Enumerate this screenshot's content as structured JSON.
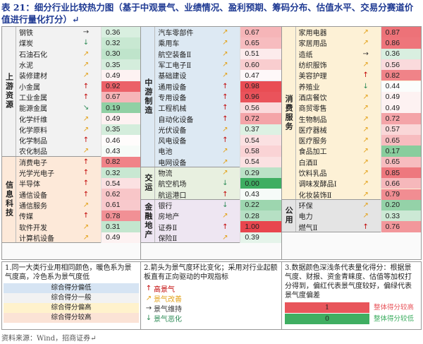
{
  "title": "表 21：细分行业比较热力图（基于中观景气、业绩情况、盈利预期、筹码分布、估值水平、交易分赛道价值进行量化打分）↵",
  "columns": [
    {
      "sections": [
        {
          "sector": "上游资源",
          "rows": [
            {
              "name": "钢铁",
              "arrow": "→",
              "value": "0.36"
            },
            {
              "name": "煤炭",
              "arrow": "↓",
              "value": "0.32"
            },
            {
              "name": "石油石化",
              "arrow": "↗",
              "value": "0.30"
            },
            {
              "name": "水泥",
              "arrow": "↗",
              "value": "0.35"
            },
            {
              "name": "装修建材",
              "arrow": "↗",
              "value": "0.49"
            },
            {
              "name": "小金属",
              "arrow": "↑",
              "value": "0.92"
            },
            {
              "name": "工业金属",
              "arrow": "↑",
              "value": "0.67"
            },
            {
              "name": "能源金属",
              "arrow": "↘",
              "value": "0.19"
            },
            {
              "name": "化学纤维",
              "arrow": "↗",
              "value": "0.49"
            },
            {
              "name": "化学原料",
              "arrow": "↗",
              "value": "0.35"
            },
            {
              "name": "化学制品",
              "arrow": "↑",
              "value": "0.46"
            },
            {
              "name": "农化制品",
              "arrow": "↗",
              "value": "0.43"
            }
          ]
        },
        {
          "sector": "信息科技",
          "rows": [
            {
              "name": "消费电子",
              "arrow": "↑",
              "value": "0.82"
            },
            {
              "name": "光学光电子",
              "arrow": "↑",
              "value": "0.32"
            },
            {
              "name": "半导体",
              "arrow": "↑",
              "value": "0.54"
            },
            {
              "name": "通信设备",
              "arrow": "↑",
              "value": "0.62"
            },
            {
              "name": "通信服务",
              "arrow": "↗",
              "value": "0.61"
            },
            {
              "name": "传媒",
              "arrow": "↑",
              "value": "0.78"
            },
            {
              "name": "软件开发",
              "arrow": "↗",
              "value": "0.31"
            },
            {
              "name": "计算机设备",
              "arrow": "↗",
              "value": "0.49"
            }
          ]
        }
      ]
    },
    {
      "sections": [
        {
          "sector": "中游制造",
          "rows": [
            {
              "name": "汽车零部件",
              "arrow": "↗",
              "value": "0.67"
            },
            {
              "name": "乘用车",
              "arrow": "↗",
              "value": "0.65"
            },
            {
              "name": "航空装备Ⅱ",
              "arrow": "↗",
              "value": "0.51"
            },
            {
              "name": "军工电子Ⅱ",
              "arrow": "↗",
              "value": "0.60"
            },
            {
              "name": "基础建设",
              "arrow": "↗",
              "value": "0.47"
            },
            {
              "name": "通用设备",
              "arrow": "↑",
              "value": "0.98"
            },
            {
              "name": "专用设备",
              "arrow": "↑",
              "value": "0.96"
            },
            {
              "name": "工程机械",
              "arrow": "↑",
              "value": "0.56"
            },
            {
              "name": "自动化设备",
              "arrow": "↑",
              "value": "0.72"
            },
            {
              "name": "光伏设备",
              "arrow": "↗",
              "value": "0.37"
            },
            {
              "name": "风电设备",
              "arrow": "↑",
              "value": "0.54"
            },
            {
              "name": "电池",
              "arrow": "↗",
              "value": "0.58"
            },
            {
              "name": "电网设备",
              "arrow": "↗",
              "value": "0.54"
            }
          ]
        },
        {
          "sector": "交运",
          "rows": [
            {
              "name": "物流",
              "arrow": "↗",
              "value": "0.29"
            },
            {
              "name": "航空机场",
              "arrow": "↓",
              "value": "0.00"
            },
            {
              "name": "航运港口",
              "arrow": "↑",
              "value": "0.43"
            }
          ]
        },
        {
          "sector": "金融地产",
          "rows": [
            {
              "name": "银行",
              "arrow": "↓",
              "value": "0.22"
            },
            {
              "name": "房地产",
              "arrow": "↗",
              "value": "0.28"
            },
            {
              "name": "证券Ⅱ",
              "arrow": "↑",
              "value": "1.00"
            },
            {
              "name": "保险Ⅱ",
              "arrow": "↗",
              "value": "0.39"
            }
          ]
        }
      ]
    },
    {
      "sections": [
        {
          "sector": "消费服务",
          "rows": [
            {
              "name": "家用电器",
              "arrow": "↗",
              "value": "0.87"
            },
            {
              "name": "家居用品",
              "arrow": "↗",
              "value": "0.86"
            },
            {
              "name": "造纸",
              "arrow": "→",
              "value": "0.36"
            },
            {
              "name": "纺织服饰",
              "arrow": "↗",
              "value": "0.56"
            },
            {
              "name": "美容护理",
              "arrow": "↑",
              "value": "0.82"
            },
            {
              "name": "养殖业",
              "arrow": "↓",
              "value": "0.44"
            },
            {
              "name": "酒店餐饮",
              "arrow": "↗",
              "value": "0.49"
            },
            {
              "name": "商贸零售",
              "arrow": "↗",
              "value": "0.49"
            },
            {
              "name": "生物制品",
              "arrow": "↗",
              "value": "0.72"
            },
            {
              "name": "医疗器械",
              "arrow": "↗",
              "value": "0.57"
            },
            {
              "name": "医疗服务",
              "arrow": "↗",
              "value": "0.65"
            },
            {
              "name": "食品加工",
              "arrow": "↗",
              "value": "0.17"
            },
            {
              "name": "白酒Ⅱ",
              "arrow": "↗",
              "value": "0.65"
            },
            {
              "name": "饮料乳品",
              "arrow": "↗",
              "value": "0.85"
            },
            {
              "name": "调味发酵品Ⅰ",
              "arrow": "↗",
              "value": "0.66"
            },
            {
              "name": "化妆装饰Ⅱ",
              "arrow": "↗",
              "value": "0.79"
            }
          ]
        },
        {
          "sector": "公用",
          "rows": [
            {
              "name": "环保",
              "arrow": "↗",
              "value": "0.20"
            },
            {
              "name": "电力",
              "arrow": "↗",
              "value": "0.33"
            },
            {
              "name": "燃气Ⅱ",
              "arrow": "↑",
              "value": "0.76"
            }
          ]
        }
      ]
    }
  ],
  "legend1": {
    "text": "1.同一大类行业用相同颜色，暖色系为景气度高，冷色系为景气度低",
    "items": [
      {
        "label": "综合得分偏低",
        "color": "#d6e4f3"
      },
      {
        "label": "综合得分一般",
        "color": "#f2f2f2"
      },
      {
        "label": "综合得分偏高",
        "color": "#fff2cc"
      },
      {
        "label": "综合得分较高",
        "color": "#fbe3d6"
      }
    ]
  },
  "legend2": {
    "text": "2.箭头为景气度环比变化；采用对行业起额板直有正向驱动的中观指标",
    "signals": [
      {
        "arrow": "↑",
        "label": "高景气",
        "color": "#c00000"
      },
      {
        "arrow": "↗",
        "label": "景气改善",
        "color": "#e3a21a"
      },
      {
        "arrow": "→",
        "label": "景气维持",
        "color": "#333333"
      },
      {
        "arrow": "↓",
        "label": "景气恶化",
        "color": "#2e8b57"
      }
    ]
  },
  "legend3": {
    "text": "3.数据颜色深浅条代表量化得分：根据景气度、财报、资金青睐度、估值等加权打分得到，偏红代表景气度较好，偏绿代表景气度偏差",
    "scale": [
      {
        "value": "1",
        "label": "整体得分较高",
        "color": "#e8555b"
      },
      {
        "value": "0",
        "label": "整体得分较低",
        "color": "#3fae62"
      }
    ]
  },
  "source": "资料来源：Wind，招商证券↵"
}
